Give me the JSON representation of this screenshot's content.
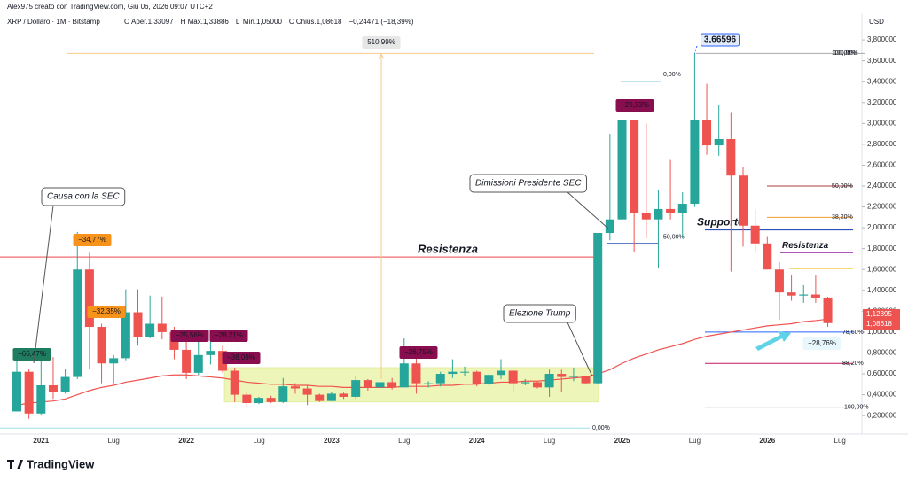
{
  "chart_data": {
    "type": "candlestick",
    "header": "Alex975 creato con TradingView.com, Giu 06, 2026 09:07 UTC+2",
    "symbol": "XRP / Dollaro · 1M · Bitstamp",
    "legend": [
      {
        "key": "O",
        "text": "Aper.1,33097"
      },
      {
        "key": "H",
        "text": "Max.1,33886"
      },
      {
        "key": "L",
        "text": "Min.1,05000"
      },
      {
        "key": "C",
        "text": "Chius.1,08618"
      }
    ],
    "change": "−0,24471 (−18,39%)",
    "currency": "USD",
    "brand": "TradingView",
    "up_color": "#26a69a",
    "down_color": "#ef5350",
    "categories": [
      null,
      null,
      "2021",
      null,
      null,
      null,
      null,
      null,
      "Lug",
      null,
      null,
      null,
      null,
      null,
      "2022",
      null,
      null,
      null,
      null,
      null,
      "Lug",
      null,
      null,
      null,
      null,
      null,
      "2023",
      null,
      null,
      null,
      null,
      null,
      "Lug",
      null,
      null,
      null,
      null,
      null,
      "2024",
      null,
      null,
      null,
      null,
      null,
      "Lug",
      null,
      null,
      null,
      null,
      null,
      "2025",
      null,
      null,
      null,
      null,
      null,
      "Lug",
      null,
      null,
      null,
      null,
      null,
      "2026",
      null,
      null,
      null,
      null,
      null,
      "Lug"
    ],
    "open": [
      0.24,
      0.62,
      0.22,
      0.49,
      0.43,
      0.57,
      1.6,
      1.05,
      0.7,
      0.75,
      1.19,
      0.95,
      1.08,
      1.0,
      0.83,
      0.61,
      0.78,
      0.82,
      0.63,
      0.4,
      0.32,
      0.37,
      0.33,
      0.48,
      0.46,
      0.4,
      0.34,
      0.41,
      0.38,
      0.54,
      0.47,
      0.52,
      0.47,
      0.7,
      0.51,
      0.51,
      0.6,
      0.62,
      0.62,
      0.5,
      0.59,
      0.63,
      0.51,
      0.52,
      0.47,
      0.6,
      0.57,
      0.58,
      0.51,
      1.95,
      2.08,
      3.03,
      2.14,
      2.08,
      2.18,
      2.14,
      2.23,
      3.03,
      2.79,
      2.85,
      2.5,
      2.02,
      1.85,
      1.6,
      1.38,
      1.35,
      1.36,
      1.33097,
      null
    ],
    "high": [
      0.78,
      0.65,
      0.75,
      0.76,
      0.65,
      1.96,
      1.76,
      1.08,
      0.78,
      1.41,
      1.41,
      1.35,
      1.34,
      1.05,
      0.91,
      0.91,
      0.91,
      0.87,
      0.66,
      0.43,
      0.38,
      0.39,
      0.56,
      0.51,
      0.49,
      0.41,
      0.43,
      0.42,
      0.58,
      0.55,
      0.54,
      0.56,
      0.94,
      0.75,
      0.53,
      0.62,
      0.74,
      0.67,
      0.63,
      0.6,
      0.74,
      0.64,
      0.55,
      0.53,
      0.64,
      0.64,
      0.66,
      0.58,
      1.95,
      2.9,
      3.4,
      3.03,
      3.0,
      2.36,
      2.65,
      2.34,
      3.66596,
      3.38,
      3.18,
      3.1,
      2.58,
      2.18,
      1.92,
      1.67,
      1.55,
      1.45,
      1.55,
      1.33886,
      null
    ],
    "low": [
      0.24,
      0.17,
      0.21,
      0.36,
      0.41,
      0.55,
      0.65,
      0.51,
      0.51,
      0.73,
      0.87,
      0.94,
      0.93,
      0.74,
      0.55,
      0.59,
      0.69,
      0.61,
      0.33,
      0.28,
      0.31,
      0.32,
      0.32,
      0.41,
      0.3,
      0.33,
      0.34,
      0.36,
      0.36,
      0.44,
      0.42,
      0.45,
      0.47,
      0.41,
      0.47,
      0.48,
      0.56,
      0.58,
      0.48,
      0.49,
      0.55,
      0.42,
      0.49,
      0.46,
      0.38,
      0.43,
      0.53,
      0.5,
      0.5,
      1.88,
      2.05,
      1.77,
      1.9,
      1.61,
      2.08,
      1.9,
      2.2,
      2.7,
      2.69,
      1.58,
      1.82,
      1.77,
      1.6,
      1.12,
      1.3,
      1.28,
      1.28,
      1.05,
      null
    ],
    "close": [
      0.62,
      0.22,
      0.49,
      0.43,
      0.57,
      1.6,
      1.05,
      0.7,
      0.75,
      1.19,
      0.95,
      1.08,
      1.0,
      0.83,
      0.61,
      0.78,
      0.82,
      0.63,
      0.4,
      0.32,
      0.37,
      0.33,
      0.48,
      0.46,
      0.4,
      0.34,
      0.41,
      0.38,
      0.54,
      0.47,
      0.52,
      0.47,
      0.7,
      0.51,
      0.51,
      0.6,
      0.62,
      0.62,
      0.5,
      0.59,
      0.63,
      0.51,
      0.52,
      0.47,
      0.6,
      0.57,
      0.58,
      0.51,
      1.95,
      2.08,
      3.03,
      2.14,
      2.08,
      2.18,
      2.14,
      2.23,
      3.03,
      2.79,
      2.85,
      2.5,
      2.02,
      1.85,
      1.6,
      1.38,
      1.35,
      1.36,
      1.33097,
      1.08618,
      null
    ],
    "ma": {
      "color": "#ef5350",
      "values": [
        0.3,
        0.32,
        0.33,
        0.34,
        0.36,
        0.4,
        0.44,
        0.47,
        0.49,
        0.52,
        0.54,
        0.56,
        0.58,
        0.59,
        0.59,
        0.58,
        0.57,
        0.56,
        0.54,
        0.52,
        0.51,
        0.5,
        0.5,
        0.49,
        0.49,
        0.48,
        0.48,
        0.47,
        0.47,
        0.47,
        0.47,
        0.47,
        0.48,
        0.48,
        0.48,
        0.49,
        0.49,
        0.5,
        0.5,
        0.51,
        0.52,
        0.52,
        0.53,
        0.53,
        0.54,
        0.55,
        0.56,
        0.57,
        0.6,
        0.64,
        0.7,
        0.75,
        0.79,
        0.83,
        0.86,
        0.89,
        0.93,
        0.96,
        0.98,
        1.0,
        1.02,
        1.04,
        1.06,
        1.07,
        1.08,
        1.1,
        1.11,
        1.12395,
        null
      ]
    },
    "last_labels": {
      "ma": "1,12395",
      "close": "1,08618"
    },
    "ylim": [
      0.04,
      4.03
    ],
    "yticks": [
      {
        "value": 0.2,
        "label": "0,200000"
      },
      {
        "value": 0.4,
        "label": "0,400000"
      },
      {
        "value": 0.6,
        "label": "0,600000"
      },
      {
        "value": 0.8,
        "label": "0,800000"
      },
      {
        "value": 1.0,
        "label": "1,000000"
      },
      {
        "value": 1.2,
        "label": "1,200000"
      },
      {
        "value": 1.4,
        "label": "1,400000"
      },
      {
        "value": 1.6,
        "label": "1,600000"
      },
      {
        "value": 1.8,
        "label": "1,800000"
      },
      {
        "value": 2.0,
        "label": "2,000000"
      },
      {
        "value": 2.2,
        "label": "2,200000"
      },
      {
        "value": 2.4,
        "label": "2,400000"
      },
      {
        "value": 2.6,
        "label": "2,600000"
      },
      {
        "value": 2.8,
        "label": "2,800000"
      },
      {
        "value": 3.0,
        "label": "3,000000"
      },
      {
        "value": 3.2,
        "label": "3,200000"
      },
      {
        "value": 3.4,
        "label": "3,400000"
      },
      {
        "value": 3.6,
        "label": "3,600000"
      },
      {
        "value": 3.8,
        "label": "3,800000"
      }
    ],
    "zone": {
      "low": 0.33,
      "high": 0.66,
      "color": "#eef5b8"
    },
    "levels": [
      {
        "value": 1.72,
        "color": "#ef6b6b",
        "label": "Resistenza"
      },
      {
        "value": 3.67,
        "color": "#f6c98c",
        "label": "100,00%"
      },
      {
        "value": 1.98,
        "color": "#2f4fb5",
        "label": "Supporto"
      },
      {
        "value": 1.76,
        "color": "#a23cb4",
        "label": "Resistenza"
      },
      {
        "value": 2.4,
        "color": "#b23b3b",
        "label": "50,00%"
      },
      {
        "value": 2.1,
        "color": "#f59c2f",
        "label": "38,20%"
      },
      {
        "value": 1.61,
        "color": "#f2c230"
      },
      {
        "value": 1.0,
        "color": "#2962ff",
        "label": "78,60%"
      },
      {
        "value": 0.7,
        "color": "#c2185b",
        "label": "88,20%"
      },
      {
        "value": 0.28,
        "color": "#c4c4c4",
        "label": "100,00%"
      },
      {
        "value": 3.67,
        "color": "#a8a8a8",
        "label": "100,00%"
      },
      {
        "value": 1.85,
        "color": "#2f4fb5",
        "label": "50,00%"
      },
      {
        "value": 3.4,
        "color": "#a9dbe8",
        "label": "0,00%"
      },
      {
        "value": 0.08,
        "color": "#9fdde3",
        "label": "0,00%"
      }
    ],
    "tags": [
      {
        "text": "−66,47%",
        "color": "#1e7d5f"
      },
      {
        "text": "−34,77%",
        "color": "#f7931a"
      },
      {
        "text": "−32,35%",
        "color": "#f7931a"
      },
      {
        "text": "−25,56%",
        "color": "#880e4f"
      },
      {
        "text": "−28,21%",
        "color": "#880e4f"
      },
      {
        "text": "−38,09%",
        "color": "#880e4f"
      },
      {
        "text": "−26,75%",
        "color": "#880e4f"
      },
      {
        "text": "−29,33%",
        "color": "#880e4f"
      },
      {
        "text": "−28,76%",
        "color": "#e8f7fb"
      },
      {
        "text": "510,99%",
        "color": "#e6e6e6"
      },
      {
        "text": "3,66596",
        "color": "#e3ecfb"
      }
    ],
    "callouts": [
      "Causa con la SEC",
      "Dimissioni Presidente SEC",
      "Elezione Trump"
    ]
  }
}
